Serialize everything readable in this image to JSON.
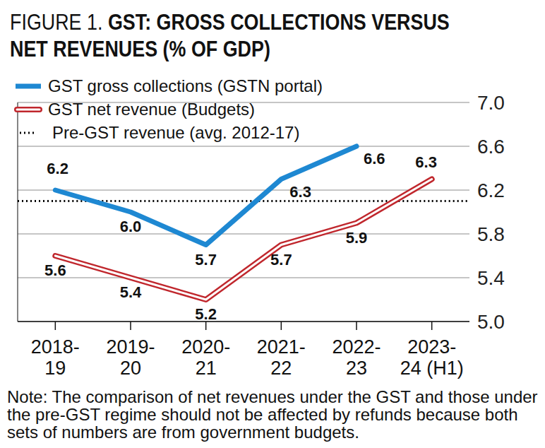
{
  "chart_data": {
    "type": "line",
    "title": "FIGURE 1. GST: GROSS COLLECTIONS VERSUS NET REVENUES (% OF GDP)",
    "note": "Note: The comparison of net revenues under the GST and those under the pre-GST regime should not be affected by refunds because both sets of numbers are from government budgets.",
    "categories": [
      "2018-19",
      "2019-20",
      "2020-21",
      "2021-22",
      "2022-23",
      "2023-24 (H1)"
    ],
    "series": [
      {
        "name": "GST gross collections (GSTN portal)",
        "color": "#1e88d2",
        "line_style": "solid",
        "data_labels": true,
        "values": [
          6.2,
          6.0,
          5.7,
          6.3,
          6.6,
          null
        ],
        "value_labels": [
          "6.2",
          "6.0",
          "5.7",
          "6.3",
          "6.6",
          null
        ]
      },
      {
        "name": "GST net revenue (Budgets)",
        "color": "#c0272d",
        "line_style": "double",
        "data_labels": true,
        "values": [
          5.6,
          5.4,
          5.2,
          5.7,
          5.9,
          6.3
        ]
      },
      {
        "name": "Pre-GST revenue (avg. 2012-17)",
        "color": "#000000",
        "line_style": "dotted",
        "data_labels": false,
        "values": [
          6.1,
          6.1,
          6.1,
          6.1,
          6.1,
          6.1
        ]
      }
    ],
    "ylim": [
      5,
      7
    ],
    "yticks": [
      {
        "value": 5,
        "label": "5.0"
      },
      5.4,
      5.8,
      6.2,
      6.6,
      {
        "value": 7,
        "label": "7.0"
      }
    ],
    "grid": true,
    "legend": "top-left"
  }
}
